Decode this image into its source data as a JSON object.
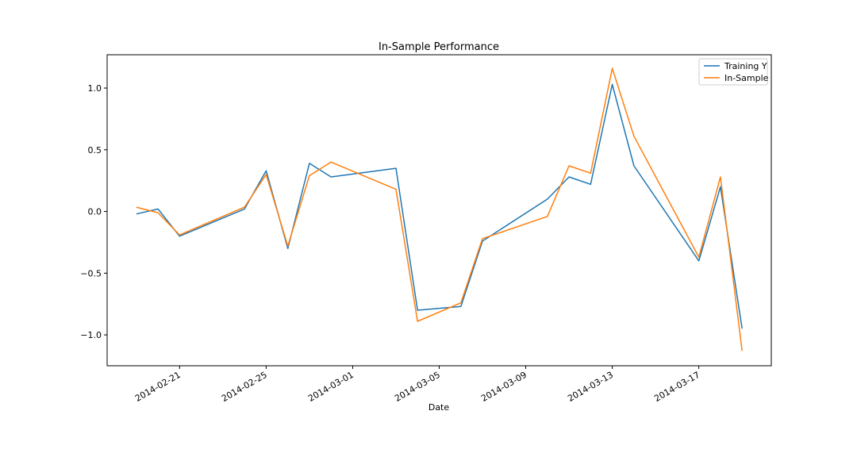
{
  "chart_data": {
    "type": "line",
    "title": "In-Sample Performance",
    "xlabel": "Date",
    "ylabel": "",
    "x": [
      "2014-02-19",
      "2014-02-20",
      "2014-02-21",
      "2014-02-24",
      "2014-02-25",
      "2014-02-26",
      "2014-02-27",
      "2014-02-28",
      "2014-03-03",
      "2014-03-04",
      "2014-03-06",
      "2014-03-07",
      "2014-03-10",
      "2014-03-11",
      "2014-03-12",
      "2014-03-13",
      "2014-03-14",
      "2014-03-17",
      "2014-03-18",
      "2014-03-19"
    ],
    "series": [
      {
        "name": "Training Y",
        "color": "#1f77b4",
        "values": [
          -0.02,
          0.02,
          -0.2,
          0.02,
          0.33,
          -0.3,
          0.39,
          0.28,
          0.35,
          -0.8,
          -0.77,
          -0.24,
          0.1,
          0.28,
          0.22,
          1.03,
          0.37,
          -0.4,
          0.2,
          -0.95
        ]
      },
      {
        "name": "In-Sample",
        "color": "#ff7f0e",
        "values": [
          0.035,
          -0.01,
          -0.19,
          0.035,
          0.3,
          -0.28,
          0.29,
          0.4,
          0.18,
          -0.89,
          -0.74,
          -0.22,
          -0.04,
          0.37,
          0.31,
          1.16,
          0.61,
          -0.37,
          0.28,
          -1.13
        ]
      }
    ],
    "xlim": [
      "2014-02-17.6",
      "2014-03-19.8"
    ],
    "xlim_days": [
      -1.35,
      29.35
    ],
    "ylim": [
      -1.25,
      1.27
    ],
    "x_ticks": [
      "2014-02-21",
      "2014-02-25",
      "2014-03-01",
      "2014-03-05",
      "2014-03-09",
      "2014-03-13",
      "2014-03-17"
    ],
    "y_ticks": [
      1.0,
      0.5,
      0.0,
      -0.5,
      -1.0
    ],
    "y_tick_labels": [
      "1.0",
      "0.5",
      "0.0",
      "−0.5",
      "−1.0"
    ],
    "legend_position": "top-right",
    "grid": false
  }
}
